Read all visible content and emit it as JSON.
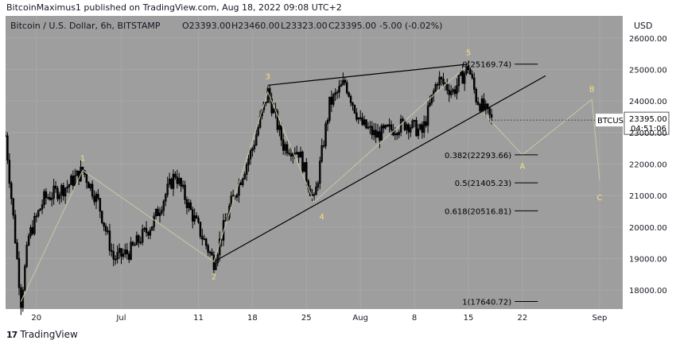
{
  "header": {
    "text": "BitcoinMaximus1 published on TradingView.com, Aug 18, 2022 09:08 UTC+2"
  },
  "legend": {
    "symbol": "Bitcoin / U.S. Dollar, 6h, BITSTAMP",
    "open": "O23393.00",
    "high": "H23460.00",
    "low": "L23323.00",
    "close": "C23395.00",
    "change": "-5.00 (-0.02%)"
  },
  "footer": {
    "brand": "TradingView"
  },
  "colors": {
    "plot_bg": "#9e9e9e",
    "candle": "#000000",
    "wave_line": "#c8c8a6",
    "label_yellow": "#f5e17a",
    "axis_bg": "#ffffff",
    "text": "#131722"
  },
  "chart_data": {
    "type": "candlestick",
    "title": "Bitcoin / U.S. Dollar, 6h, BITSTAMP",
    "currency_label": "USD",
    "y_ticks": [
      "26000.00",
      "25000.00",
      "24000.00",
      "23000.00",
      "22000.00",
      "21000.00",
      "20000.00",
      "19000.00",
      "18000.00"
    ],
    "ylim": [
      17400,
      26700
    ],
    "x_ticks": [
      {
        "label": "20",
        "date": "2022-06-20"
      },
      {
        "label": "Jul",
        "date": "2022-07-01"
      },
      {
        "label": "11",
        "date": "2022-07-11"
      },
      {
        "label": "18",
        "date": "2022-07-18"
      },
      {
        "label": "25",
        "date": "2022-07-25"
      },
      {
        "label": "Aug",
        "date": "2022-08-01"
      },
      {
        "label": "8",
        "date": "2022-08-08"
      },
      {
        "label": "15",
        "date": "2022-08-15"
      },
      {
        "label": "22",
        "date": "2022-08-22"
      },
      {
        "label": "Sep",
        "date": "2022-09-01"
      }
    ],
    "xlim": [
      "2022-06-16",
      "2022-09-04"
    ],
    "price_path": [
      {
        "date": "2022-06-16",
        "price": 22900
      },
      {
        "date": "2022-06-17",
        "price": 20300
      },
      {
        "date": "2022-06-18",
        "price": 17640
      },
      {
        "date": "2022-06-19",
        "price": 19700
      },
      {
        "date": "2022-06-21",
        "price": 20900
      },
      {
        "date": "2022-06-24",
        "price": 21300
      },
      {
        "date": "2022-06-26",
        "price": 21800
      },
      {
        "date": "2022-06-28",
        "price": 20800
      },
      {
        "date": "2022-06-30",
        "price": 19000
      },
      {
        "date": "2022-07-02",
        "price": 19200
      },
      {
        "date": "2022-07-05",
        "price": 20100
      },
      {
        "date": "2022-07-08",
        "price": 21700
      },
      {
        "date": "2022-07-10",
        "price": 20500
      },
      {
        "date": "2022-07-13",
        "price": 18900
      },
      {
        "date": "2022-07-15",
        "price": 20600
      },
      {
        "date": "2022-07-18",
        "price": 22500
      },
      {
        "date": "2022-07-20",
        "price": 24280
      },
      {
        "date": "2022-07-22",
        "price": 22600
      },
      {
        "date": "2022-07-24",
        "price": 22400
      },
      {
        "date": "2022-07-26",
        "price": 20800
      },
      {
        "date": "2022-07-28",
        "price": 23900
      },
      {
        "date": "2022-07-30",
        "price": 24600
      },
      {
        "date": "2022-08-01",
        "price": 23300
      },
      {
        "date": "2022-08-03",
        "price": 22900
      },
      {
        "date": "2022-08-05",
        "price": 23100
      },
      {
        "date": "2022-08-07",
        "price": 23300
      },
      {
        "date": "2022-08-09",
        "price": 23000
      },
      {
        "date": "2022-08-11",
        "price": 24700
      },
      {
        "date": "2022-08-13",
        "price": 24300
      },
      {
        "date": "2022-08-15",
        "price": 25100
      },
      {
        "date": "2022-08-16",
        "price": 24100
      },
      {
        "date": "2022-08-18",
        "price": 23395
      }
    ],
    "wave_labels": [
      {
        "label": "1",
        "date": "2022-06-26",
        "price": 22200
      },
      {
        "label": "2",
        "date": "2022-07-13",
        "price": 18450
      },
      {
        "label": "3",
        "date": "2022-07-20",
        "price": 24800
      },
      {
        "label": "4",
        "date": "2022-07-27",
        "price": 20350
      },
      {
        "label": "5",
        "date": "2022-08-15",
        "price": 25550
      },
      {
        "label": "A",
        "date": "2022-08-22",
        "price": 21950
      },
      {
        "label": "B",
        "date": "2022-08-31",
        "price": 24400
      },
      {
        "label": "C",
        "date": "2022-09-01",
        "price": 20950
      }
    ],
    "wave_path": [
      {
        "date": "2022-06-18",
        "price": 17640
      },
      {
        "date": "2022-06-26",
        "price": 21800
      },
      {
        "date": "2022-07-13",
        "price": 18900
      },
      {
        "date": "2022-07-20",
        "price": 24280
      },
      {
        "date": "2022-07-26",
        "price": 20800
      },
      {
        "date": "2022-08-15",
        "price": 25169.74
      }
    ],
    "projection_path": [
      {
        "date": "2022-08-17",
        "price": 23600
      },
      {
        "date": "2022-08-22",
        "price": 22293.66
      },
      {
        "date": "2022-08-31",
        "price": 24050
      },
      {
        "date": "2022-09-01",
        "price": 21500
      }
    ],
    "trendlines": [
      {
        "from": {
          "date": "2022-07-13",
          "price": 18900
        },
        "to": {
          "date": "2022-08-25",
          "price": 24800
        }
      },
      {
        "from": {
          "date": "2022-07-20",
          "price": 24500
        },
        "to": {
          "date": "2022-08-15",
          "price": 25169.74
        }
      }
    ],
    "fib_levels": [
      {
        "label": "0(25169.74)",
        "price": 25169.74
      },
      {
        "label": "0.382(22293.66)",
        "price": 22293.66
      },
      {
        "label": "0.5(21405.23)",
        "price": 21405.23
      },
      {
        "label": "0.618(20516.81)",
        "price": 20516.81
      },
      {
        "label": "1(17640.72)",
        "price": 17640.72
      }
    ],
    "fib_range": {
      "start": "2022-08-21",
      "end": "2022-08-24"
    },
    "last_price": {
      "symbol": "BTCUSD",
      "value": "23395.00",
      "countdown": "04:51:06",
      "price": 23395
    }
  }
}
